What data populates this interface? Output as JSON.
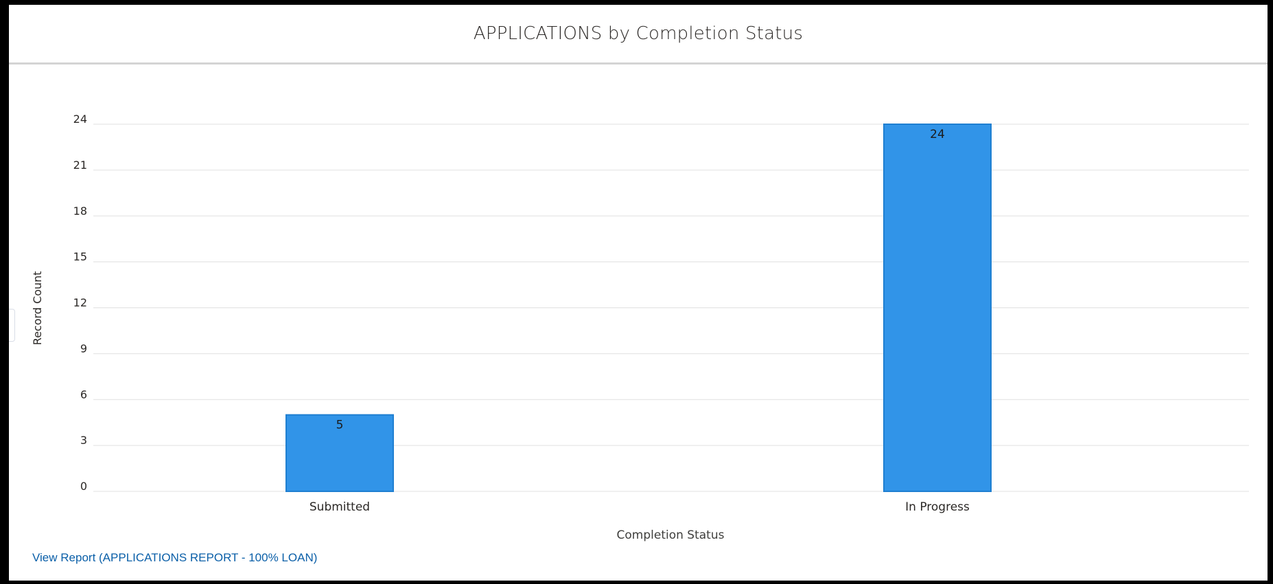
{
  "header": {
    "title": "APPLICATIONS by Completion Status"
  },
  "footer": {
    "view_report_label": "View Report (APPLICATIONS REPORT - 100% LOAN)"
  },
  "chart_data": {
    "type": "bar",
    "categories": [
      "Submitted",
      "In Progress"
    ],
    "values": [
      5,
      24
    ],
    "title": "APPLICATIONS by Completion Status",
    "xlabel": "Completion Status",
    "ylabel": "Record Count",
    "ylim": [
      0,
      24
    ],
    "yticks": [
      0,
      3,
      6,
      9,
      12,
      15,
      18,
      21,
      24
    ],
    "grid": true,
    "legend": "none",
    "data_labels": true,
    "colors": {
      "bar_fill": "#3194e8",
      "bar_stroke": "#1f7fd1",
      "grid": "#e0e0e0",
      "axis_text": "#2b2826",
      "link": "#0a5fa8"
    }
  }
}
